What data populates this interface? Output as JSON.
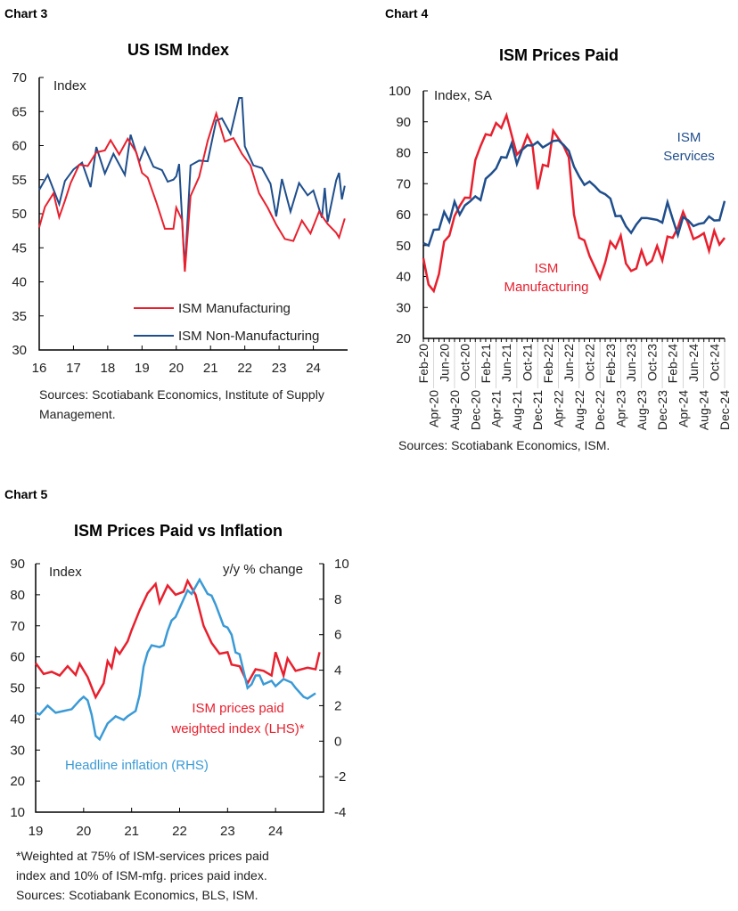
{
  "colors": {
    "red": "#e8202e",
    "navy": "#1f4e8c",
    "lightblue": "#3a9ad6"
  },
  "chart_data": [
    {
      "chart_label": "Chart 3",
      "title": "US ISM Index",
      "type": "line",
      "ylabel": "Index",
      "ylim": [
        30,
        70
      ],
      "yticks": [
        30,
        35,
        40,
        45,
        50,
        55,
        60,
        65,
        70
      ],
      "xlim": [
        "2016-01",
        "2025-01"
      ],
      "xticks": [
        "16",
        "17",
        "18",
        "19",
        "20",
        "21",
        "22",
        "23",
        "24"
      ],
      "legend_position": "bottom-right",
      "grid": false,
      "source": [
        "Sources: Scotiabank Economics, Institute of Supply",
        "Management."
      ],
      "series": [
        {
          "name": "ISM Manufacturing",
          "color": "red",
          "points": [
            [
              "2016-01",
              48
            ],
            [
              "2016-03",
              51
            ],
            [
              "2016-06",
              53
            ],
            [
              "2016-08",
              49.5
            ],
            [
              "2016-10",
              51.9
            ],
            [
              "2016-12",
              54.5
            ],
            [
              "2017-03",
              57.2
            ],
            [
              "2017-06",
              57
            ],
            [
              "2017-09",
              59
            ],
            [
              "2017-12",
              59.3
            ],
            [
              "2018-02",
              60.8
            ],
            [
              "2018-05",
              58.7
            ],
            [
              "2018-08",
              61
            ],
            [
              "2018-11",
              59
            ],
            [
              "2019-01",
              56
            ],
            [
              "2019-03",
              55.3
            ],
            [
              "2019-06",
              51.7
            ],
            [
              "2019-09",
              47.8
            ],
            [
              "2019-12",
              47.8
            ],
            [
              "2020-01",
              50.9
            ],
            [
              "2020-03",
              49.1
            ],
            [
              "2020-04",
              41.5
            ],
            [
              "2020-06",
              52.6
            ],
            [
              "2020-09",
              55.4
            ],
            [
              "2020-12",
              60.7
            ],
            [
              "2021-03",
              64.7
            ],
            [
              "2021-06",
              60.6
            ],
            [
              "2021-09",
              61.1
            ],
            [
              "2021-12",
              58.8
            ],
            [
              "2022-03",
              57.1
            ],
            [
              "2022-06",
              53
            ],
            [
              "2022-09",
              50.9
            ],
            [
              "2022-12",
              48.4
            ],
            [
              "2023-03",
              46.3
            ],
            [
              "2023-06",
              46
            ],
            [
              "2023-09",
              49
            ],
            [
              "2023-12",
              47.1
            ],
            [
              "2024-03",
              50.3
            ],
            [
              "2024-06",
              48.5
            ],
            [
              "2024-09",
              47.2
            ],
            [
              "2024-10",
              46.5
            ],
            [
              "2024-12",
              49.3
            ]
          ]
        },
        {
          "name": "ISM Non-Manufacturing",
          "color": "navy",
          "points": [
            [
              "2016-01",
              53.5
            ],
            [
              "2016-04",
              55.7
            ],
            [
              "2016-08",
              51.4
            ],
            [
              "2016-10",
              54.8
            ],
            [
              "2017-01",
              56.5
            ],
            [
              "2017-04",
              57.5
            ],
            [
              "2017-07",
              53.9
            ],
            [
              "2017-09",
              59.8
            ],
            [
              "2017-12",
              55.9
            ],
            [
              "2018-03",
              58.8
            ],
            [
              "2018-07",
              55.7
            ],
            [
              "2018-09",
              61.6
            ],
            [
              "2018-12",
              57.6
            ],
            [
              "2019-02",
              59.7
            ],
            [
              "2019-05",
              56.9
            ],
            [
              "2019-08",
              56.4
            ],
            [
              "2019-10",
              54.7
            ],
            [
              "2019-12",
              55
            ],
            [
              "2020-01",
              55.5
            ],
            [
              "2020-02",
              57.3
            ],
            [
              "2020-04",
              41.8
            ],
            [
              "2020-06",
              57.1
            ],
            [
              "2020-09",
              57.8
            ],
            [
              "2020-12",
              57.7
            ],
            [
              "2021-03",
              63.7
            ],
            [
              "2021-05",
              64
            ],
            [
              "2021-08",
              61.7
            ],
            [
              "2021-11",
              67
            ],
            [
              "2021-12",
              67
            ],
            [
              "2022-01",
              59.9
            ],
            [
              "2022-04",
              57.1
            ],
            [
              "2022-07",
              56.7
            ],
            [
              "2022-10",
              54.4
            ],
            [
              "2022-12",
              49.6
            ],
            [
              "2023-02",
              55.1
            ],
            [
              "2023-05",
              50.3
            ],
            [
              "2023-08",
              54.5
            ],
            [
              "2023-11",
              52.7
            ],
            [
              "2024-01",
              53.4
            ],
            [
              "2024-04",
              49.4
            ],
            [
              "2024-05",
              53.8
            ],
            [
              "2024-06",
              48.8
            ],
            [
              "2024-09",
              54.9
            ],
            [
              "2024-10",
              56
            ],
            [
              "2024-11",
              52.1
            ],
            [
              "2024-12",
              54.1
            ]
          ]
        }
      ]
    },
    {
      "chart_label": "Chart 4",
      "title": "ISM Prices Paid",
      "type": "line",
      "ylabel": "Index, SA",
      "ylim": [
        20,
        100
      ],
      "yticks": [
        20,
        30,
        40,
        50,
        60,
        70,
        80,
        90,
        100
      ],
      "categories": [
        "Feb-20",
        "Mar-20",
        "Apr-20",
        "May-20",
        "Jun-20",
        "Jul-20",
        "Aug-20",
        "Sep-20",
        "Oct-20",
        "Nov-20",
        "Dec-20",
        "Jan-21",
        "Feb-21",
        "Mar-21",
        "Apr-21",
        "May-21",
        "Jun-21",
        "Jul-21",
        "Aug-21",
        "Sep-21",
        "Oct-21",
        "Nov-21",
        "Dec-21",
        "Jan-22",
        "Feb-22",
        "Mar-22",
        "Apr-22",
        "May-22",
        "Jun-22",
        "Jul-22",
        "Aug-22",
        "Sep-22",
        "Oct-22",
        "Nov-22",
        "Dec-22",
        "Jan-23",
        "Feb-23",
        "Mar-23",
        "Apr-23",
        "May-23",
        "Jun-23",
        "Jul-23",
        "Aug-23",
        "Sep-23",
        "Oct-23",
        "Nov-23",
        "Dec-23",
        "Jan-24",
        "Feb-24",
        "Mar-24",
        "Apr-24",
        "May-24",
        "Jun-24",
        "Jul-24",
        "Aug-24",
        "Sep-24",
        "Oct-24",
        "Nov-24",
        "Dec-24"
      ],
      "grid": false,
      "source": [
        "Sources: Scotiabank Economics, ISM."
      ],
      "series": [
        {
          "name": "ISM Manufacturing",
          "label_lines": [
            "ISM",
            "Manufacturing"
          ],
          "color": "red",
          "values": [
            45.9,
            37.4,
            35.3,
            40.8,
            51.3,
            53.2,
            59.5,
            62.8,
            65.5,
            65.4,
            77.6,
            82.1,
            86,
            85.6,
            89.6,
            88,
            92.1,
            85.7,
            79.4,
            81.2,
            85.7,
            82.4,
            68.2,
            76.1,
            75.6,
            87.1,
            84.6,
            82.2,
            78.5,
            60,
            52.5,
            51.7,
            46.6,
            43,
            39.4,
            44.5,
            51.3,
            49.2,
            53.2,
            44.2,
            41.8,
            42.6,
            48.4,
            43.8,
            45.1,
            49.9,
            45.2,
            52.9,
            52.5,
            55.8,
            60.9,
            57,
            52.1,
            52.9,
            54,
            48.3,
            54.8,
            50.3,
            52.5
          ]
        },
        {
          "name": "ISM Services",
          "label_lines": [
            "ISM",
            "Services"
          ],
          "color": "navy",
          "values": [
            50.8,
            50,
            55.1,
            55.2,
            60.9,
            57.7,
            64.2,
            60,
            63,
            64.3,
            65.9,
            64.7,
            71.6,
            73.1,
            74.9,
            78.6,
            78.4,
            83,
            76.4,
            80.9,
            82.4,
            82.3,
            83.5,
            81.7,
            82.7,
            83.8,
            84,
            82.5,
            80.6,
            75.5,
            72.3,
            69.6,
            70.7,
            69.2,
            67.4,
            66.6,
            65.2,
            59.5,
            59.6,
            56.2,
            54.1,
            56.8,
            58.9,
            58.9,
            58.6,
            58.3,
            57.4,
            64,
            58.6,
            53.4,
            59.2,
            58.1,
            56.3,
            57,
            57.3,
            59.4,
            58.1,
            58.2,
            64.4
          ]
        }
      ]
    },
    {
      "chart_label": "Chart 5",
      "title": "ISM Prices Paid vs Inflation",
      "type": "line",
      "ylabel_left": "Index",
      "ylabel_right": "y/y % change",
      "ylim_left": [
        10,
        90
      ],
      "yticks_left": [
        10,
        20,
        30,
        40,
        50,
        60,
        70,
        80,
        90
      ],
      "ylim_right": [
        -4,
        10
      ],
      "yticks_right": [
        -4,
        -2,
        0,
        2,
        4,
        6,
        8,
        10
      ],
      "xlim": [
        "2019-01",
        "2025-01"
      ],
      "xticks": [
        "19",
        "20",
        "21",
        "22",
        "23",
        "24"
      ],
      "grid": false,
      "footnote": [
        "*Weighted at 75% of ISM-services prices paid",
        "index and 10% of ISM-mfg. prices paid index.",
        "Sources: Scotiabank Economics, BLS, ISM."
      ],
      "series": [
        {
          "name": "ISM prices paid weighted index (LHS)*",
          "label_lines": [
            "ISM prices paid",
            "weighted index (LHS)*"
          ],
          "axis": "left",
          "color": "red",
          "points": [
            [
              "2019-01",
              58
            ],
            [
              "2019-03",
              54.5
            ],
            [
              "2019-05",
              55.2
            ],
            [
              "2019-07",
              54
            ],
            [
              "2019-09",
              57
            ],
            [
              "2019-11",
              54.2
            ],
            [
              "2019-12",
              57.8
            ],
            [
              "2020-02",
              53.5
            ],
            [
              "2020-04",
              47
            ],
            [
              "2020-06",
              51.5
            ],
            [
              "2020-07",
              58.6
            ],
            [
              "2020-08",
              56.5
            ],
            [
              "2020-09",
              62.7
            ],
            [
              "2020-10",
              61
            ],
            [
              "2020-12",
              65
            ],
            [
              "2021-01",
              68.6
            ],
            [
              "2021-03",
              75
            ],
            [
              "2021-05",
              80.5
            ],
            [
              "2021-07",
              83.5
            ],
            [
              "2021-08",
              77.5
            ],
            [
              "2021-10",
              83
            ],
            [
              "2021-12",
              80
            ],
            [
              "2022-02",
              81
            ],
            [
              "2022-03",
              84.5
            ],
            [
              "2022-05",
              80
            ],
            [
              "2022-07",
              70
            ],
            [
              "2022-09",
              64.5
            ],
            [
              "2022-11",
              61
            ],
            [
              "2023-01",
              61.5
            ],
            [
              "2023-02",
              57.5
            ],
            [
              "2023-04",
              57
            ],
            [
              "2023-06",
              51.5
            ],
            [
              "2023-08",
              56
            ],
            [
              "2023-10",
              55.5
            ],
            [
              "2023-12",
              54
            ],
            [
              "2024-01",
              61.5
            ],
            [
              "2024-03",
              54
            ],
            [
              "2024-04",
              59.5
            ],
            [
              "2024-06",
              55.5
            ],
            [
              "2024-09",
              56.5
            ],
            [
              "2024-11",
              56
            ],
            [
              "2024-12",
              61.5
            ]
          ]
        },
        {
          "name": "Headline inflation (RHS)",
          "axis": "right",
          "color": "lightblue",
          "points": [
            [
              "2019-01",
              1.6
            ],
            [
              "2019-02",
              1.5
            ],
            [
              "2019-04",
              2.0
            ],
            [
              "2019-06",
              1.6
            ],
            [
              "2019-08",
              1.7
            ],
            [
              "2019-10",
              1.8
            ],
            [
              "2019-12",
              2.3
            ],
            [
              "2020-01",
              2.5
            ],
            [
              "2020-02",
              2.3
            ],
            [
              "2020-03",
              1.5
            ],
            [
              "2020-04",
              0.3
            ],
            [
              "2020-05",
              0.1
            ],
            [
              "2020-07",
              1.0
            ],
            [
              "2020-09",
              1.4
            ],
            [
              "2020-11",
              1.2
            ],
            [
              "2020-12",
              1.4
            ],
            [
              "2021-02",
              1.7
            ],
            [
              "2021-03",
              2.6
            ],
            [
              "2021-04",
              4.2
            ],
            [
              "2021-05",
              5.0
            ],
            [
              "2021-06",
              5.4
            ],
            [
              "2021-08",
              5.3
            ],
            [
              "2021-09",
              5.4
            ],
            [
              "2021-10",
              6.2
            ],
            [
              "2021-11",
              6.8
            ],
            [
              "2021-12",
              7.0
            ],
            [
              "2022-01",
              7.5
            ],
            [
              "2022-03",
              8.5
            ],
            [
              "2022-04",
              8.3
            ],
            [
              "2022-06",
              9.1
            ],
            [
              "2022-08",
              8.3
            ],
            [
              "2022-09",
              8.2
            ],
            [
              "2022-10",
              7.7
            ],
            [
              "2022-12",
              6.5
            ],
            [
              "2023-01",
              6.4
            ],
            [
              "2023-02",
              6.0
            ],
            [
              "2023-03",
              5.0
            ],
            [
              "2023-04",
              4.9
            ],
            [
              "2023-06",
              3.0
            ],
            [
              "2023-07",
              3.2
            ],
            [
              "2023-08",
              3.7
            ],
            [
              "2023-09",
              3.7
            ],
            [
              "2023-10",
              3.2
            ],
            [
              "2023-12",
              3.4
            ],
            [
              "2024-01",
              3.1
            ],
            [
              "2024-03",
              3.5
            ],
            [
              "2024-05",
              3.3
            ],
            [
              "2024-06",
              3.0
            ],
            [
              "2024-08",
              2.5
            ],
            [
              "2024-09",
              2.4
            ],
            [
              "2024-11",
              2.7
            ]
          ]
        }
      ]
    }
  ]
}
